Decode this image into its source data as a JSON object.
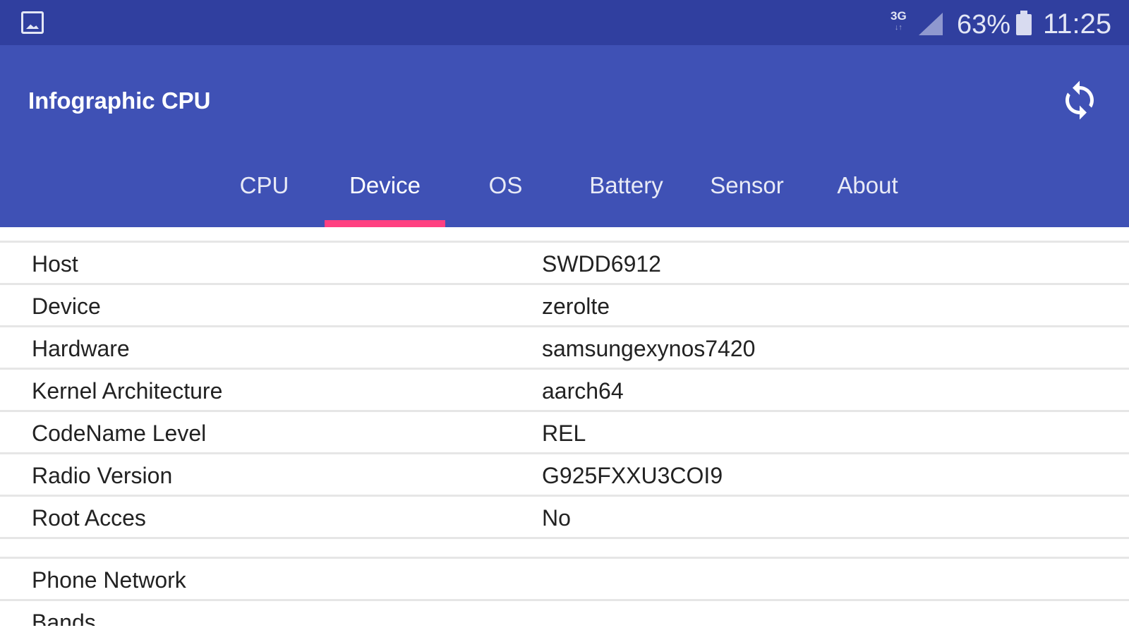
{
  "status_bar": {
    "network": "3G",
    "battery": "63%",
    "time": "11:25",
    "icons": [
      "gallery-icon",
      "signal-icon",
      "battery-icon"
    ]
  },
  "app_bar": {
    "title": "Infographic CPU",
    "action_icon": "refresh-icon"
  },
  "tabs": [
    {
      "label": "CPU"
    },
    {
      "label": "Device",
      "active": true
    },
    {
      "label": "OS"
    },
    {
      "label": "Battery"
    },
    {
      "label": "Sensor"
    },
    {
      "label": "About"
    }
  ],
  "rows": [
    {
      "key": "Host",
      "value": "SWDD6912"
    },
    {
      "key": "Device",
      "value": "zerolte"
    },
    {
      "key": "Hardware",
      "value": "samsungexynos7420"
    },
    {
      "key": "Kernel Architecture",
      "value": "aarch64"
    },
    {
      "key": "CodeName Level",
      "value": "REL"
    },
    {
      "key": "Radio Version",
      "value": "G925FXXU3COI9"
    },
    {
      "key": "Root Acces",
      "value": "No"
    }
  ],
  "section2": [
    {
      "key": "Phone Network"
    },
    {
      "key": "Bands"
    }
  ],
  "colors": {
    "status_bar": "#303f9f",
    "primary": "#3f51b5",
    "accent": "#ff4081"
  }
}
